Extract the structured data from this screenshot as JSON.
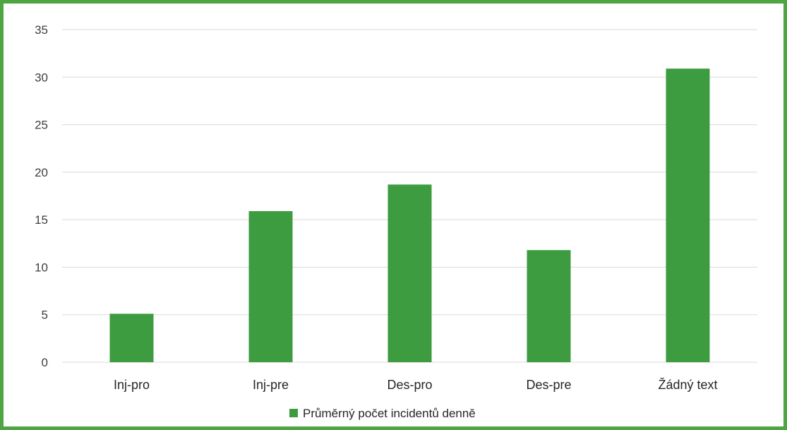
{
  "chart_data": {
    "type": "bar",
    "categories": [
      "Inj-pro",
      "Inj-pre",
      "Des-pro",
      "Des-pre",
      "Žádný text"
    ],
    "series": [
      {
        "name": "Průměrný počet incidentů denně",
        "values": [
          5.1,
          15.9,
          18.7,
          11.8,
          30.9
        ]
      }
    ],
    "ylim": [
      0,
      35
    ],
    "yticks": [
      0,
      5,
      10,
      15,
      20,
      25,
      30,
      35
    ],
    "grid": true,
    "legend_position": "bottom",
    "colors": {
      "bar": "#3d9c3f",
      "frame": "#4ea541"
    }
  }
}
